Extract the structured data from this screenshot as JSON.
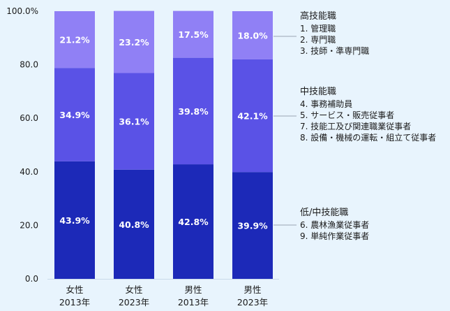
{
  "chart_data": {
    "type": "bar",
    "stacked": true,
    "categories": [
      [
        "女性",
        "2013年"
      ],
      [
        "女性",
        "2023年"
      ],
      [
        "男性",
        "2013年"
      ],
      [
        "男性",
        "2023年"
      ]
    ],
    "series": [
      {
        "name": "低/中技能職",
        "values": [
          43.9,
          40.8,
          42.8,
          39.9
        ],
        "color": "#1c29b8"
      },
      {
        "name": "中技能職",
        "values": [
          34.9,
          36.1,
          39.8,
          42.1
        ],
        "color": "#5a52e6"
      },
      {
        "name": "高技能職",
        "values": [
          21.2,
          23.2,
          17.5,
          18.0
        ],
        "color": "#9080f5"
      }
    ],
    "data_labels": [
      [
        "43.9%",
        "40.8%",
        "42.8%",
        "39.9%"
      ],
      [
        "34.9%",
        "36.1%",
        "39.8%",
        "42.1%"
      ],
      [
        "21.2%",
        "23.2%",
        "17.5%",
        "18.0%"
      ]
    ],
    "y_ticks": [
      "0.0",
      "20.0",
      "40.0",
      "60.0",
      "80.0",
      "100.0%"
    ],
    "ylim": [
      0,
      100
    ],
    "title": "",
    "xlabel": "",
    "ylabel": "",
    "grid": false,
    "legend_position": "right",
    "background": "#e8f4fd",
    "legend_groups": [
      {
        "title": "高技能職",
        "items": [
          "1.  管理職",
          "2.  専門職",
          "3.  技師・準専門職"
        ]
      },
      {
        "title": "中技能職",
        "items": [
          "4.  事務補助員",
          "5.  サービス・販売従事者",
          "7.  技能工及び関連職業従事者",
          "8.  設備・機械の運転・組立て従事者"
        ]
      },
      {
        "title": "低/中技能職",
        "items": [
          "6.  農林漁業従事者",
          "9.  単純作業従事者"
        ]
      }
    ]
  }
}
